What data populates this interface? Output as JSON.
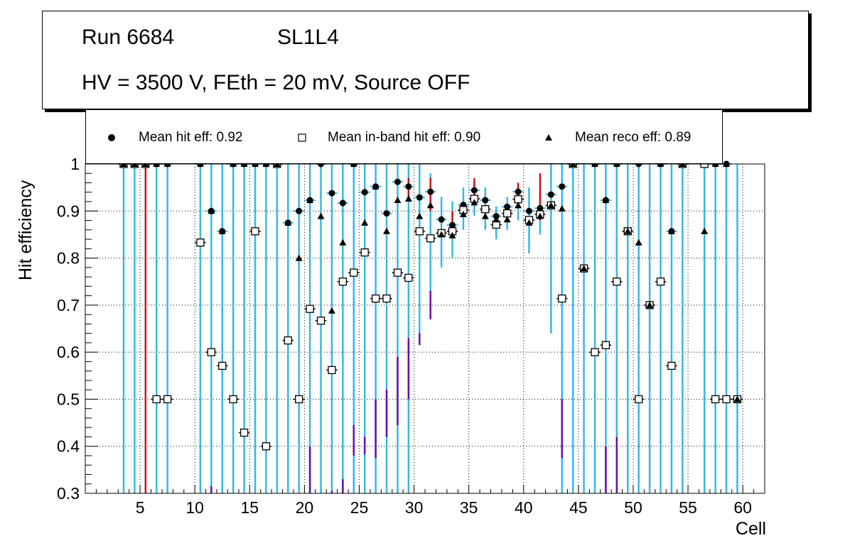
{
  "title": {
    "run": "Run 6684",
    "layer": "SL1L4",
    "conditions": "HV = 3500 V, FEth = 20 mV, Source OFF"
  },
  "legend": {
    "hit": "Mean hit  eff: 0.92",
    "inband": "Mean in-band hit eff: 0.90",
    "reco": "Mean reco eff: 0.89"
  },
  "colors": {
    "cyan": "#35b8e6",
    "red": "#c8141e",
    "purple": "#6a0dad",
    "black": "#000000",
    "grid": "#000000"
  },
  "chart_data": {
    "type": "scatter",
    "xlabel": "Cell",
    "ylabel": "Hit efficiency",
    "xlim": [
      0,
      62
    ],
    "ylim": [
      0.3,
      1.0
    ],
    "xticks": [
      5,
      10,
      15,
      20,
      25,
      30,
      35,
      40,
      45,
      50,
      55,
      60
    ],
    "yticks": [
      0.3,
      0.4,
      0.5,
      0.6,
      0.7,
      0.8,
      0.9,
      1.0
    ],
    "ytick_labels": [
      "0.3",
      "0.4",
      "0.5",
      "0.6",
      "0.7",
      "0.8",
      "0.9",
      "1"
    ],
    "grid": true,
    "series": [
      {
        "name": "Mean hit eff",
        "marker": "circle",
        "points": [
          [
            3.5,
            1.0
          ],
          [
            4.5,
            1.0
          ],
          [
            5.5,
            1.0
          ],
          [
            6.5,
            1.0
          ],
          [
            7.5,
            1.0
          ],
          [
            10.5,
            1.0
          ],
          [
            11.5,
            0.9
          ],
          [
            12.5,
            0.857
          ],
          [
            13.5,
            1.0
          ],
          [
            14.5,
            1.0
          ],
          [
            15.5,
            1.0
          ],
          [
            16.5,
            1.0
          ],
          [
            17.5,
            1.0
          ],
          [
            18.5,
            0.875
          ],
          [
            19.5,
            0.9
          ],
          [
            20.5,
            0.923
          ],
          [
            21.5,
            1.0
          ],
          [
            22.5,
            0.938
          ],
          [
            23.5,
            0.917
          ],
          [
            24.5,
            1.0
          ],
          [
            25.5,
            0.94
          ],
          [
            26.5,
            0.952
          ],
          [
            27.5,
            0.895
          ],
          [
            28.5,
            0.962
          ],
          [
            29.5,
            0.952
          ],
          [
            30.5,
            0.929
          ],
          [
            31.5,
            0.941
          ],
          [
            32.5,
            0.882
          ],
          [
            33.5,
            0.87
          ],
          [
            34.5,
            0.913
          ],
          [
            35.5,
            0.944
          ],
          [
            36.5,
            0.923
          ],
          [
            37.5,
            0.889
          ],
          [
            38.5,
            0.909
          ],
          [
            39.5,
            0.941
          ],
          [
            40.5,
            0.9
          ],
          [
            41.5,
            0.906
          ],
          [
            42.5,
            0.935
          ],
          [
            43.5,
            0.952
          ],
          [
            44.5,
            1.0
          ],
          [
            45.5,
            0.778
          ],
          [
            46.5,
            1.0
          ],
          [
            47.5,
            0.923
          ],
          [
            48.5,
            1.0
          ],
          [
            49.5,
            0.857
          ],
          [
            50.5,
            1.0
          ],
          [
            51.5,
            0.7
          ],
          [
            52.5,
            1.0
          ],
          [
            53.5,
            0.857
          ],
          [
            54.5,
            1.0
          ],
          [
            56.5,
            1.0
          ],
          [
            57.5,
            1.0
          ],
          [
            58.5,
            1.0
          ],
          [
            59.5,
            0.5
          ]
        ]
      },
      {
        "name": "Mean in-band hit eff",
        "marker": "open-square",
        "points": [
          [
            3.5,
            1.0
          ],
          [
            4.5,
            1.0
          ],
          [
            5.5,
            1.0
          ],
          [
            6.5,
            0.5
          ],
          [
            7.5,
            0.5
          ],
          [
            10.5,
            0.833
          ],
          [
            11.5,
            0.6
          ],
          [
            12.5,
            0.571
          ],
          [
            13.5,
            0.5
          ],
          [
            14.5,
            0.429
          ],
          [
            15.5,
            0.857
          ],
          [
            16.5,
            0.4
          ],
          [
            17.5,
            1.0
          ],
          [
            18.5,
            0.625
          ],
          [
            19.5,
            0.5
          ],
          [
            20.5,
            0.692
          ],
          [
            21.5,
            0.667
          ],
          [
            22.5,
            0.562
          ],
          [
            23.5,
            0.75
          ],
          [
            24.5,
            0.769
          ],
          [
            25.5,
            0.812
          ],
          [
            26.5,
            0.714
          ],
          [
            27.5,
            0.714
          ],
          [
            28.5,
            0.769
          ],
          [
            29.5,
            0.758
          ],
          [
            30.5,
            0.857
          ],
          [
            31.5,
            0.842
          ],
          [
            32.5,
            0.853
          ],
          [
            33.5,
            0.857
          ],
          [
            34.5,
            0.902
          ],
          [
            35.5,
            0.926
          ],
          [
            36.5,
            0.904
          ],
          [
            37.5,
            0.871
          ],
          [
            38.5,
            0.895
          ],
          [
            39.5,
            0.925
          ],
          [
            40.5,
            0.881
          ],
          [
            41.5,
            0.893
          ],
          [
            42.5,
            0.912
          ],
          [
            43.5,
            0.714
          ],
          [
            44.5,
            1.0
          ],
          [
            45.5,
            0.778
          ],
          [
            46.5,
            0.6
          ],
          [
            47.5,
            0.615
          ],
          [
            48.5,
            0.75
          ],
          [
            49.5,
            0.857
          ],
          [
            50.5,
            0.5
          ],
          [
            51.5,
            0.7
          ],
          [
            52.5,
            0.75
          ],
          [
            53.5,
            0.571
          ],
          [
            54.5,
            1.0
          ],
          [
            56.5,
            1.0
          ],
          [
            57.5,
            0.5
          ],
          [
            58.5,
            0.5
          ],
          [
            59.5,
            0.5
          ]
        ]
      },
      {
        "name": "Mean reco eff",
        "marker": "triangle",
        "points": [
          [
            3.5,
            1.0
          ],
          [
            4.5,
            1.0
          ],
          [
            5.5,
            1.0
          ],
          [
            6.5,
            1.0
          ],
          [
            7.5,
            1.0
          ],
          [
            10.5,
            1.0
          ],
          [
            11.5,
            0.9
          ],
          [
            12.5,
            0.857
          ],
          [
            13.5,
            1.0
          ],
          [
            14.5,
            1.0
          ],
          [
            15.5,
            1.0
          ],
          [
            16.5,
            1.0
          ],
          [
            17.5,
            1.0
          ],
          [
            18.5,
            0.875
          ],
          [
            19.5,
            0.8
          ],
          [
            20.5,
            0.923
          ],
          [
            21.5,
            0.889
          ],
          [
            22.5,
            0.688
          ],
          [
            23.5,
            0.833
          ],
          [
            24.5,
            1.0
          ],
          [
            25.5,
            0.875
          ],
          [
            26.5,
            0.952
          ],
          [
            27.5,
            0.857
          ],
          [
            28.5,
            0.923
          ],
          [
            29.5,
            0.926
          ],
          [
            30.5,
            0.889
          ],
          [
            31.5,
            0.912
          ],
          [
            32.5,
            0.85
          ],
          [
            33.5,
            0.848
          ],
          [
            34.5,
            0.893
          ],
          [
            35.5,
            0.918
          ],
          [
            36.5,
            0.889
          ],
          [
            37.5,
            0.882
          ],
          [
            38.5,
            0.882
          ],
          [
            39.5,
            0.912
          ],
          [
            40.5,
            0.875
          ],
          [
            41.5,
            0.889
          ],
          [
            42.5,
            0.912
          ],
          [
            43.5,
            0.905
          ],
          [
            44.5,
            1.0
          ],
          [
            45.5,
            0.778
          ],
          [
            46.5,
            1.0
          ],
          [
            47.5,
            0.923
          ],
          [
            48.5,
            1.0
          ],
          [
            49.5,
            0.857
          ],
          [
            50.5,
            0.833
          ],
          [
            51.5,
            0.7
          ],
          [
            52.5,
            1.0
          ],
          [
            53.5,
            0.857
          ],
          [
            54.5,
            1.0
          ],
          [
            56.5,
            0.857
          ],
          [
            57.5,
            1.0
          ],
          [
            58.5,
            1.0
          ],
          [
            59.5,
            0.5
          ]
        ]
      }
    ],
    "error_bars": {
      "in_band_cyan": [
        [
          3.5,
          0.3,
          1.0
        ],
        [
          4.5,
          0.3,
          1.0
        ],
        [
          6.5,
          0.3,
          1.0
        ],
        [
          7.5,
          0.3,
          1.0
        ],
        [
          10.5,
          0.3,
          1.0
        ],
        [
          11.5,
          0.3,
          1.0
        ],
        [
          12.5,
          0.3,
          1.0
        ],
        [
          13.5,
          0.3,
          1.0
        ],
        [
          14.5,
          0.3,
          1.0
        ],
        [
          15.5,
          0.3,
          1.0
        ],
        [
          16.5,
          0.3,
          1.0
        ],
        [
          17.5,
          0.3,
          1.0
        ],
        [
          18.5,
          0.3,
          1.0
        ],
        [
          19.5,
          0.3,
          1.0
        ],
        [
          20.5,
          0.3,
          1.0
        ],
        [
          21.5,
          0.3,
          1.0
        ],
        [
          22.5,
          0.3,
          1.0
        ],
        [
          23.5,
          0.3,
          1.0
        ],
        [
          24.5,
          0.3,
          1.0
        ],
        [
          25.5,
          0.3,
          1.0
        ],
        [
          26.5,
          0.3,
          1.0
        ],
        [
          27.5,
          0.3,
          1.0
        ],
        [
          28.5,
          0.3,
          1.0
        ],
        [
          29.5,
          0.3,
          1.0
        ],
        [
          30.5,
          0.62,
          1.0
        ],
        [
          31.5,
          0.73,
          0.98
        ],
        [
          32.5,
          0.78,
          0.93
        ],
        [
          33.5,
          0.8,
          0.92
        ],
        [
          34.5,
          0.86,
          0.95
        ],
        [
          35.5,
          0.89,
          0.96
        ],
        [
          36.5,
          0.86,
          0.95
        ],
        [
          37.5,
          0.84,
          0.91
        ],
        [
          38.5,
          0.86,
          0.93
        ],
        [
          39.5,
          0.88,
          0.96
        ],
        [
          40.5,
          0.81,
          0.95
        ],
        [
          41.5,
          0.85,
          0.94
        ],
        [
          42.5,
          0.64,
          1.0
        ],
        [
          43.5,
          0.3,
          1.0
        ],
        [
          44.5,
          0.3,
          1.0
        ],
        [
          45.5,
          0.3,
          1.0
        ],
        [
          46.5,
          0.3,
          1.0
        ],
        [
          47.5,
          0.3,
          1.0
        ],
        [
          48.5,
          0.3,
          1.0
        ],
        [
          49.5,
          0.3,
          1.0
        ],
        [
          50.5,
          0.3,
          1.0
        ],
        [
          51.5,
          0.3,
          1.0
        ],
        [
          52.5,
          0.3,
          1.0
        ],
        [
          53.5,
          0.3,
          1.0
        ],
        [
          54.5,
          0.3,
          1.0
        ],
        [
          56.5,
          0.3,
          1.0
        ],
        [
          57.5,
          0.3,
          1.0
        ],
        [
          58.5,
          0.3,
          1.0
        ],
        [
          59.5,
          0.3,
          1.0
        ]
      ],
      "red": [
        [
          5.5,
          0.3,
          1.0
        ],
        [
          29.5,
          0.93,
          0.97
        ],
        [
          31.5,
          0.9,
          0.97
        ],
        [
          33.5,
          0.85,
          0.9
        ],
        [
          35.5,
          0.92,
          0.97
        ],
        [
          39.5,
          0.92,
          0.96
        ],
        [
          41.5,
          0.88,
          0.98
        ]
      ],
      "purple": [
        [
          11.5,
          0.3,
          0.315
        ],
        [
          20.5,
          0.3,
          0.4
        ],
        [
          22.5,
          0.3,
          0.305
        ],
        [
          23.5,
          0.3,
          0.33
        ],
        [
          24.5,
          0.38,
          0.445
        ],
        [
          25.5,
          0.383,
          0.42
        ],
        [
          26.5,
          0.375,
          0.5
        ],
        [
          27.5,
          0.42,
          0.52
        ],
        [
          28.5,
          0.445,
          0.59
        ],
        [
          29.5,
          0.5,
          0.63
        ],
        [
          30.5,
          0.615,
          0.64
        ],
        [
          31.5,
          0.67,
          0.73
        ],
        [
          43.5,
          0.375,
          0.5
        ],
        [
          47.5,
          0.3,
          0.4
        ],
        [
          48.5,
          0.3,
          0.42
        ]
      ]
    }
  }
}
